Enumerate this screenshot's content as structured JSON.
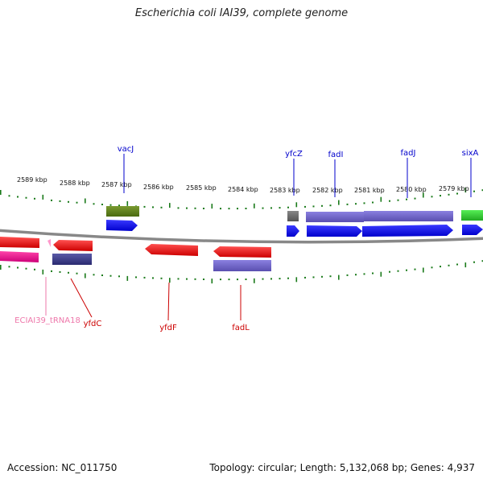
{
  "title": "Escherichia coli IAI39, complete genome",
  "accession": "Accession: NC_011750",
  "stats": "Topology: circular; Length: 5,132,068 bp; Genes: 4,937",
  "colors": {
    "forward_label": "#0000cc",
    "reverse_label": "#cc0000",
    "trna_label": "#ee77aa",
    "ticks": "#1a7a1a",
    "backbone": "#888888"
  },
  "kbp_labels": [
    "2589 kbp",
    "2588 kbp",
    "2587 kbp",
    "2586 kbp",
    "2585 kbp",
    "2584 kbp",
    "2583 kbp",
    "2582 kbp",
    "2581 kbp",
    "2580 kbp",
    "2579 kbp"
  ],
  "gene_labels": {
    "vacJ": "vacJ",
    "yfcZ": "yfcZ",
    "fadI": "fadI",
    "fadJ": "fadJ",
    "sixA": "sixA",
    "trna": "ECIAI39_tRNA18",
    "yfdC": "yfdC",
    "yfdF": "yfdF",
    "fadL": "fadL"
  }
}
